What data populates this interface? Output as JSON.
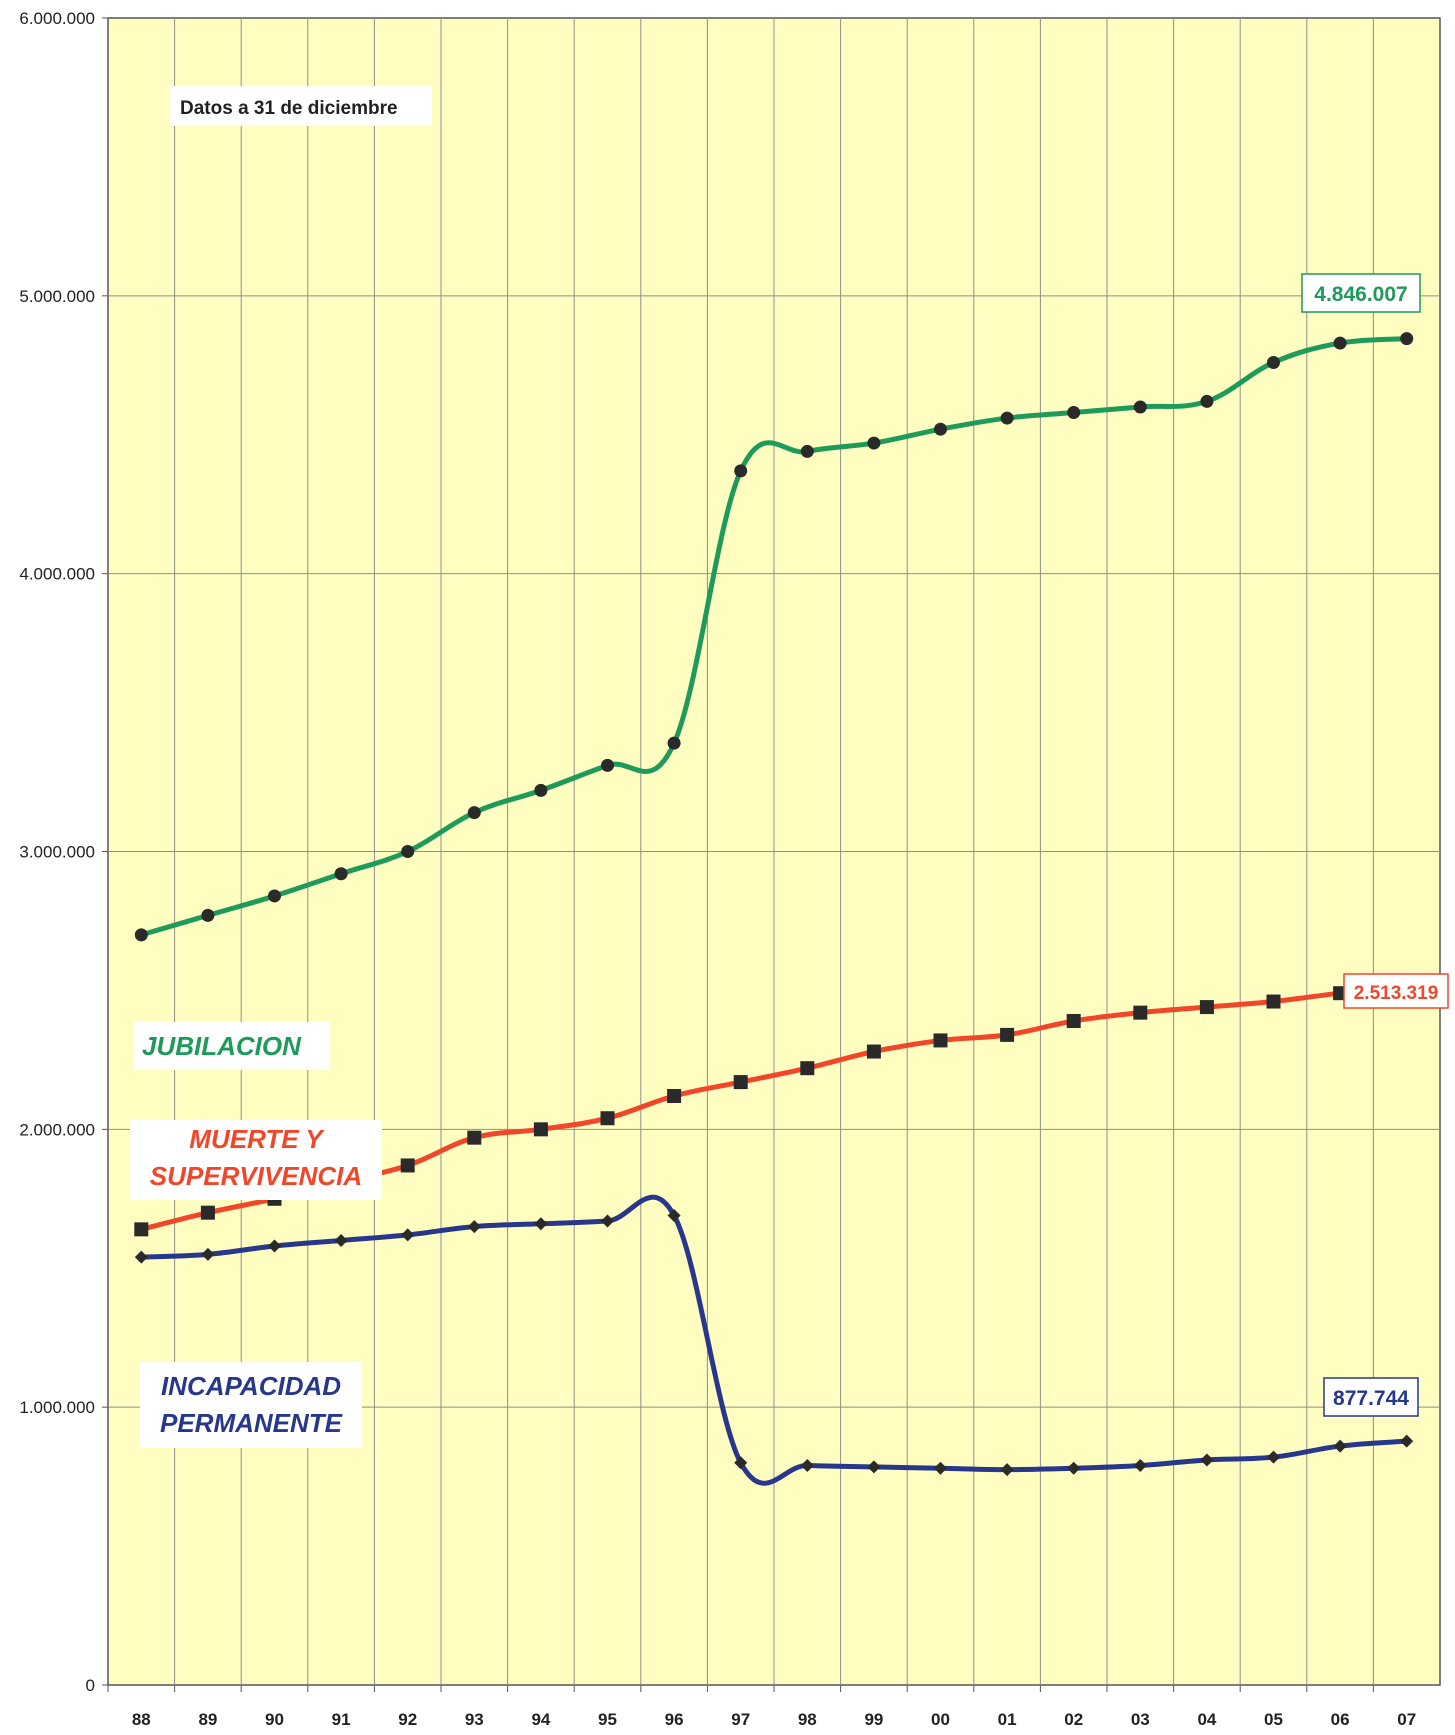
{
  "chart_data": {
    "type": "line",
    "title": "",
    "xlabel": "",
    "ylabel": "",
    "note": "Datos a 31 de diciembre",
    "categories": [
      "88",
      "89",
      "90",
      "91",
      "92",
      "93",
      "94",
      "95",
      "96",
      "97",
      "98",
      "99",
      "00",
      "01",
      "02",
      "03",
      "04",
      "05",
      "06",
      "07"
    ],
    "ylim": [
      0,
      6000000
    ],
    "yticks": [
      0,
      1000000,
      2000000,
      3000000,
      4000000,
      5000000,
      6000000
    ],
    "ytick_labels": [
      "0",
      "1.000.000",
      "2.000.000",
      "3.000.000",
      "4.000.000",
      "5.000.000",
      "6.000.000"
    ],
    "grid": true,
    "background_color": "#FFFDC0",
    "series": [
      {
        "name": "JUBILACION",
        "color": "#1E9A5A",
        "marker": "circle",
        "values": [
          2700000,
          2770000,
          2840000,
          2920000,
          3000000,
          3140000,
          3220000,
          3310000,
          3390000,
          4370000,
          4440000,
          4470000,
          4520000,
          4560000,
          4580000,
          4600000,
          4620000,
          4760000,
          4830000,
          4846007
        ],
        "end_label": "4.846.007"
      },
      {
        "name": "MUERTE Y SUPERVIVENCIA",
        "name_lines": [
          "MUERTE Y",
          "SUPERVIVENCIA"
        ],
        "color": "#F0462A",
        "marker": "square",
        "values": [
          1640000,
          1700000,
          1750000,
          1810000,
          1870000,
          1970000,
          2000000,
          2040000,
          2120000,
          2170000,
          2220000,
          2280000,
          2320000,
          2340000,
          2390000,
          2420000,
          2440000,
          2460000,
          2490000,
          2513319
        ],
        "end_label": "2.513.319"
      },
      {
        "name": "INCAPACIDAD PERMANENTE",
        "name_lines": [
          "INCAPACIDAD",
          "PERMANENTE"
        ],
        "color": "#27388C",
        "marker": "diamond",
        "values": [
          1540000,
          1550000,
          1580000,
          1600000,
          1620000,
          1650000,
          1660000,
          1670000,
          1690000,
          800000,
          790000,
          785000,
          780000,
          775000,
          780000,
          790000,
          810000,
          820000,
          860000,
          877744
        ],
        "end_label": "877.744"
      }
    ]
  }
}
